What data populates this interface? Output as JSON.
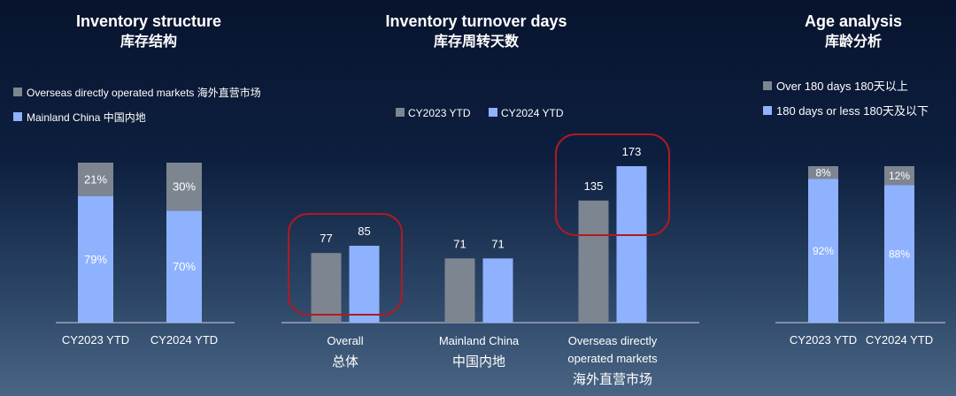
{
  "colors": {
    "gray": "#7d8590",
    "blue": "#8fb2ff",
    "highlight": "#b01a22",
    "axis": "#c8d0dc"
  },
  "chart_data": [
    {
      "type": "bar",
      "stacked": true,
      "title": "Inventory structure",
      "subtitle": "库存结构",
      "categories": [
        "CY2023 YTD",
        "CY2024 YTD"
      ],
      "series": [
        {
          "name": "Mainland China 中国内地",
          "color": "#8fb2ff",
          "values": [
            79,
            70
          ],
          "labels": [
            "79%",
            "70%"
          ]
        },
        {
          "name": "Overseas directly operated markets 海外直营市场",
          "color": "#7d8590",
          "values": [
            21,
            30
          ],
          "labels": [
            "21%",
            "30%"
          ]
        }
      ],
      "ylim": [
        0,
        100
      ],
      "legend": "top-left"
    },
    {
      "type": "bar",
      "title": "Inventory turnover days",
      "subtitle": "库存周转天数",
      "categories": [
        {
          "en": "Overall",
          "zh": "总体"
        },
        {
          "en": "Mainland China",
          "zh": "中国内地"
        },
        {
          "en": "Overseas directly operated markets",
          "zh": "海外直营市场"
        }
      ],
      "series": [
        {
          "name": "CY2023 YTD",
          "color": "#7d8590",
          "values": [
            77,
            71,
            135
          ]
        },
        {
          "name": "CY2024 YTD",
          "color": "#8fb2ff",
          "values": [
            85,
            71,
            173
          ]
        }
      ],
      "ylim": [
        0,
        180
      ],
      "highlighted_categories": [
        "Overall",
        "Overseas directly operated markets"
      ],
      "legend": "top-center"
    },
    {
      "type": "bar",
      "stacked": true,
      "title": "Age analysis",
      "subtitle": "库龄分析",
      "categories": [
        "CY2023 YTD",
        "CY2024 YTD"
      ],
      "series": [
        {
          "name": "180 days or less 180天及以下",
          "color": "#8fb2ff",
          "values": [
            92,
            88
          ],
          "labels": [
            "92%",
            "88%"
          ]
        },
        {
          "name": "Over 180 days 180天以上",
          "color": "#7d8590",
          "values": [
            8,
            12
          ],
          "labels": [
            "8%",
            "12%"
          ]
        }
      ],
      "ylim": [
        0,
        100
      ],
      "legend": "top-left"
    }
  ]
}
